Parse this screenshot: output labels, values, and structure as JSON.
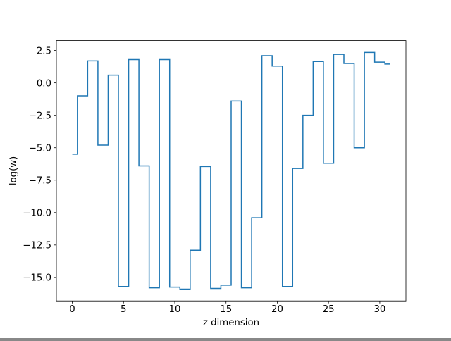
{
  "figure": {
    "background": "#ffffff",
    "axes_facecolor": "#ffffff",
    "spine_color": "#000000"
  },
  "chart_data": {
    "type": "line",
    "subtype": "step-mid",
    "title": "",
    "xlabel": "z dimension",
    "ylabel": "log(w)",
    "x": [
      0,
      1,
      2,
      3,
      4,
      5,
      6,
      7,
      8,
      9,
      10,
      11,
      12,
      13,
      14,
      15,
      16,
      17,
      18,
      19,
      20,
      21,
      22,
      23,
      24,
      25,
      26,
      27,
      28,
      29,
      30,
      31
    ],
    "values": [
      -5.5,
      -1.0,
      1.7,
      -4.8,
      0.6,
      -15.7,
      1.8,
      -6.4,
      -15.8,
      1.8,
      -15.75,
      -15.9,
      -12.9,
      -6.45,
      -15.85,
      -15.6,
      -1.4,
      -15.8,
      -10.4,
      2.1,
      1.3,
      -15.7,
      -6.6,
      -2.5,
      1.65,
      -6.2,
      2.2,
      1.5,
      -5.0,
      2.35,
      1.6,
      1.45
    ],
    "xlim": [
      -1.55,
      32.55
    ],
    "ylim": [
      -16.81,
      3.26
    ],
    "xticks": [
      0,
      5,
      10,
      15,
      20,
      25,
      30
    ],
    "xtick_labels": [
      "0",
      "5",
      "10",
      "15",
      "20",
      "25",
      "30"
    ],
    "yticks": [
      2.5,
      0.0,
      -2.5,
      -5.0,
      -7.5,
      -10.0,
      -12.5,
      -15.0
    ],
    "ytick_labels": [
      "2.5",
      "0.0",
      "−2.5",
      "−5.0",
      "−7.5",
      "−10.0",
      "−12.5",
      "−15.0"
    ],
    "line_color": "#1f77b4",
    "line_width": 1.5,
    "grid": false,
    "legend": null
  }
}
